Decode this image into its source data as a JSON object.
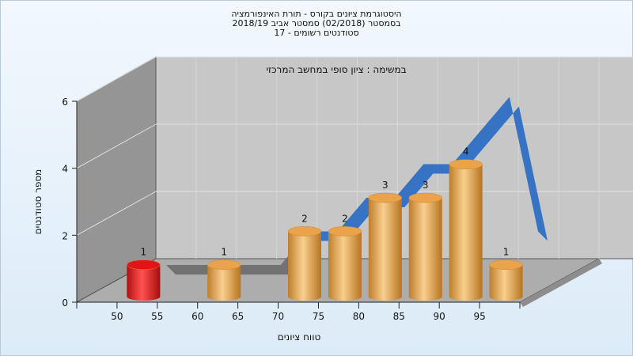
{
  "chart_data": {
    "type": "bar",
    "title_lines": [
      "היסטוגרמת ציונים בקורס - תורת האינפורמציה",
      "בסמסטר  (02/2018)  סמסטר אביב 2018/19",
      "סטודנטים רשומים - 17"
    ],
    "subtitle": "במשימה : ציון סופי במחשב המרכזי",
    "xlabel": "טווח ציונים",
    "ylabel": "מספר סטודנטים",
    "x_tick_labels": [
      "50",
      "55",
      "60",
      "65",
      "70",
      "75",
      "80",
      "85",
      "90",
      "95"
    ],
    "categories": [
      "50",
      "60",
      "70",
      "75",
      "80",
      "85",
      "90",
      "95"
    ],
    "values": [
      1,
      1,
      2,
      2,
      3,
      3,
      4,
      1
    ],
    "highlight_index": 0,
    "trend_values": [
      0,
      0,
      0,
      0,
      0,
      1,
      1,
      2,
      2,
      3,
      3,
      4,
      5,
      1
    ],
    "ylim": [
      0,
      6
    ],
    "yticks": [
      0,
      2,
      4,
      6
    ],
    "grid": true,
    "colors": {
      "bar": "#e9a84d",
      "bar_highlight": "#e21a1a",
      "trend_gray": "#6f6f6f",
      "trend_blue": "#2f6fc4",
      "back_wall": "#c7c7c7",
      "side_wall": "#959595",
      "floor": "#adadad"
    }
  }
}
